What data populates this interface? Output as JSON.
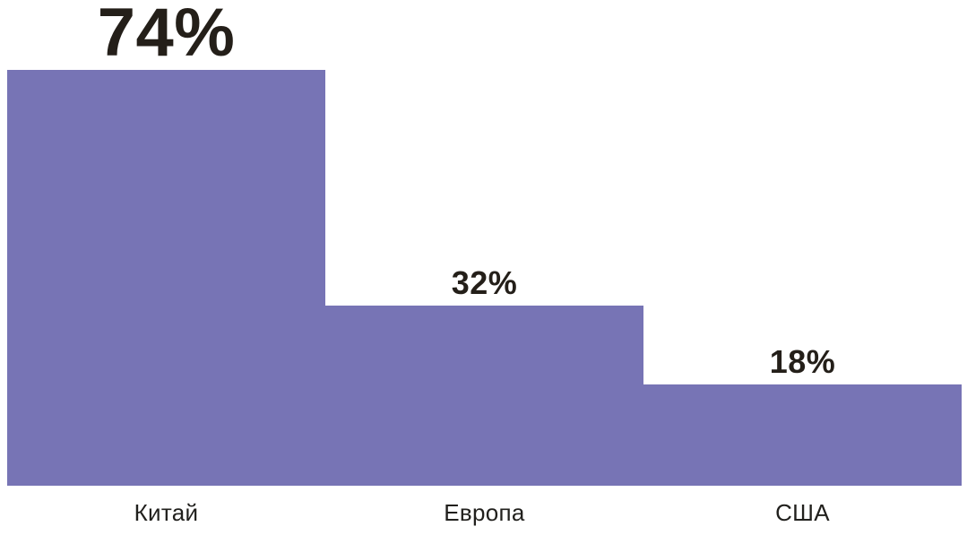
{
  "chart_data": {
    "type": "bar",
    "title": "",
    "xlabel": "",
    "ylabel": "",
    "categories": [
      "Китай",
      "Европа",
      "США"
    ],
    "values": [
      74,
      32,
      18
    ],
    "value_labels": [
      "74%",
      "32%",
      "18%"
    ],
    "ylim": [
      0,
      86
    ],
    "grid": false,
    "legend": false,
    "bar_color": "#7774b5",
    "value_label_color": "#241f19",
    "category_label_color": "#21201d",
    "background_color": "#ffffff"
  }
}
